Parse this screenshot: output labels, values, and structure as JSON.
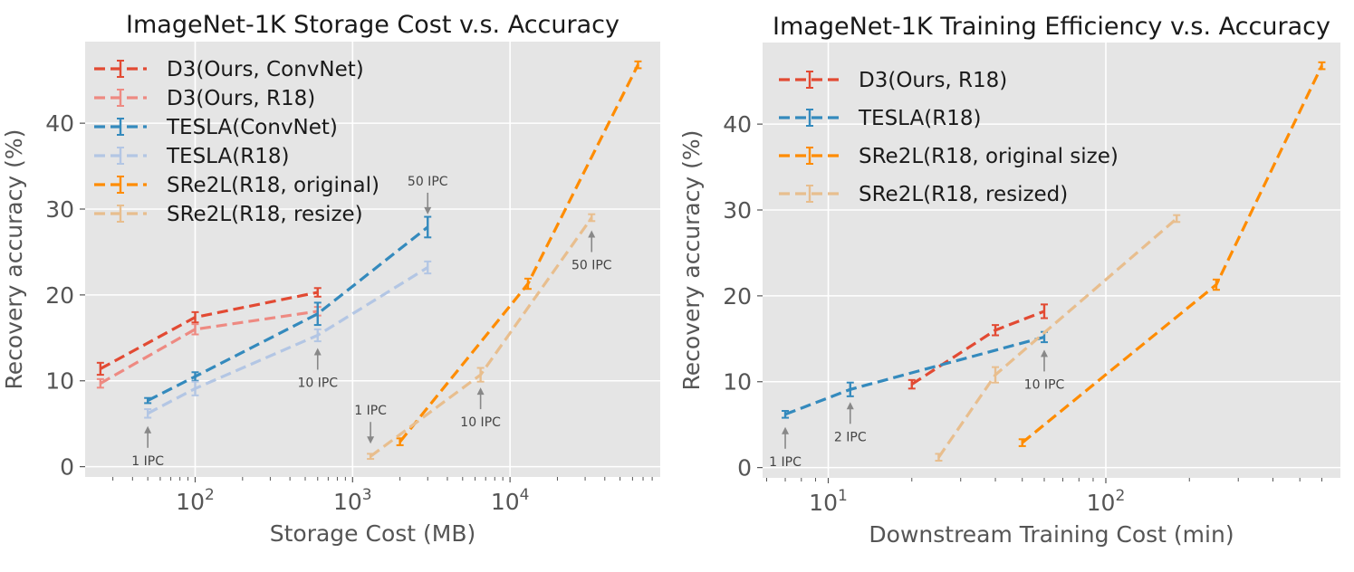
{
  "colors": {
    "d3_convnet": "#e24a33",
    "d3_r18": "#ee8a82",
    "tesla_convnet": "#348abd",
    "tesla_r18": "#b3c6e4",
    "sre2l_original": "#ff8c00",
    "sre2l_resize": "#e8be8e",
    "panel_bg": "#e5e5e5",
    "grid": "#ffffff",
    "annot_arrow": "#888888"
  },
  "chart_data": [
    {
      "type": "line",
      "title": "ImageNet-1K Storage Cost v.s. Accuracy",
      "xlabel": "Storage Cost (MB)",
      "ylabel": "Recovery accuracy (%)",
      "xscale": "log",
      "xlim": [
        20,
        90000
      ],
      "ylim": [
        -1.2,
        49.5
      ],
      "xticks": [
        {
          "value": 100,
          "base": "10",
          "exp": "2"
        },
        {
          "value": 1000,
          "base": "10",
          "exp": "3"
        },
        {
          "value": 10000,
          "base": "10",
          "exp": "4"
        }
      ],
      "yticks": [
        0,
        10,
        20,
        30,
        40
      ],
      "grid": true,
      "legend_position": "upper-left",
      "series": [
        {
          "key": "d3_convnet",
          "name": "D3(Ours, ConvNet)",
          "x": [
            25,
            100,
            600
          ],
          "y": [
            11.4,
            17.4,
            20.3
          ],
          "err": [
            0.7,
            0.6,
            0.5
          ]
        },
        {
          "key": "d3_r18",
          "name": "D3(Ours, R18)",
          "x": [
            25,
            100,
            600
          ],
          "y": [
            9.7,
            16.0,
            18.1
          ],
          "err": [
            0.5,
            0.6,
            0.5
          ]
        },
        {
          "key": "tesla_convnet",
          "name": "TESLA(ConvNet)",
          "x": [
            50,
            100,
            600,
            3000
          ],
          "y": [
            7.7,
            10.5,
            17.8,
            27.9
          ],
          "err": [
            0.3,
            0.5,
            1.3,
            1.2
          ]
        },
        {
          "key": "tesla_r18",
          "name": "TESLA(R18)",
          "x": [
            50,
            100,
            600,
            3000
          ],
          "y": [
            6.2,
            9.1,
            15.3,
            23.2
          ],
          "err": [
            0.5,
            0.8,
            0.7,
            0.7
          ]
        },
        {
          "key": "sre2l_original",
          "name": "SRe2L(R18, original)",
          "x": [
            2000,
            13000,
            65000
          ],
          "y": [
            2.9,
            21.3,
            46.8
          ],
          "err": [
            0.4,
            0.6,
            0.4
          ]
        },
        {
          "key": "sre2l_resize",
          "name": "SRe2L(R18, resize)",
          "x": [
            1300,
            6500,
            33000
          ],
          "y": [
            1.2,
            10.7,
            29.0
          ],
          "err": [
            0.3,
            0.8,
            0.4
          ]
        }
      ],
      "annotations": [
        {
          "text": "1 IPC",
          "x": 50,
          "y": 6.2,
          "dir": "up"
        },
        {
          "text": "10 IPC",
          "x": 600,
          "y": 15.3,
          "dir": "up"
        },
        {
          "text": "50 IPC",
          "x": 3000,
          "y": 27.9,
          "dir": "down"
        },
        {
          "text": "1 IPC",
          "x": 1300,
          "y": 1.2,
          "dir": "down"
        },
        {
          "text": "10 IPC",
          "x": 6500,
          "y": 10.7,
          "dir": "up"
        },
        {
          "text": "50 IPC",
          "x": 33000,
          "y": 29.0,
          "dir": "up"
        }
      ]
    },
    {
      "type": "line",
      "title": "ImageNet-1K Training Efficiency v.s. Accuracy",
      "xlabel": "Downstream Training Cost (min)",
      "ylabel": "Recovery accuracy (%)",
      "xscale": "log",
      "xlim": [
        5.8,
        700
      ],
      "ylim": [
        -1.2,
        49.5
      ],
      "xticks": [
        {
          "value": 10,
          "base": "10",
          "exp": "1"
        },
        {
          "value": 100,
          "base": "10",
          "exp": "2"
        }
      ],
      "yticks": [
        0,
        10,
        20,
        30,
        40
      ],
      "grid": true,
      "legend_position": "upper-left",
      "series": [
        {
          "key": "d3_convnet",
          "name": "D3(Ours, R18)",
          "x": [
            20,
            40,
            60
          ],
          "y": [
            9.7,
            16.0,
            18.2
          ],
          "err": [
            0.5,
            0.6,
            0.8
          ]
        },
        {
          "key": "tesla_convnet",
          "name": "TESLA(R18)",
          "x": [
            7,
            12,
            60
          ],
          "y": [
            6.2,
            9.1,
            15.2
          ],
          "err": [
            0.4,
            0.8,
            0.6
          ]
        },
        {
          "key": "sre2l_original",
          "name": "SRe2L(R18, original size)",
          "x": [
            50,
            250,
            600
          ],
          "y": [
            2.9,
            21.3,
            46.8
          ],
          "err": [
            0.4,
            0.6,
            0.4
          ]
        },
        {
          "key": "sre2l_resize",
          "name": "SRe2L(R18, resized)",
          "x": [
            25,
            40,
            180
          ],
          "y": [
            1.2,
            10.8,
            29.0
          ],
          "err": [
            0.4,
            0.9,
            0.4
          ]
        }
      ],
      "annotations": [
        {
          "text": "1 IPC",
          "x": 7,
          "y": 6.2,
          "dir": "up"
        },
        {
          "text": "2 IPC",
          "x": 12,
          "y": 9.1,
          "dir": "up"
        },
        {
          "text": "10 IPC",
          "x": 60,
          "y": 15.2,
          "dir": "up"
        }
      ]
    }
  ]
}
